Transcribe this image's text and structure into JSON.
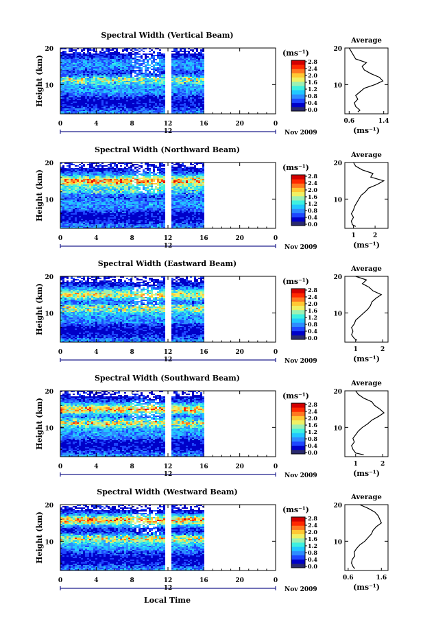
{
  "figure": {
    "xlabel": "Local Time",
    "date_label": "Nov 2009",
    "heatmap_axis_ylabel": "Height (km)",
    "colorbar_unit": "(ms⁻¹)",
    "colorbar_ticks": [
      "0.0",
      "0.4",
      "0.8",
      "1.2",
      "1.6",
      "2.0",
      "2.4",
      "2.8"
    ],
    "colorscale": [
      "#2a2a6e",
      "#0000c8",
      "#1e46ff",
      "#2e8cff",
      "#21c8ff",
      "#3ef0e0",
      "#9cf0b4",
      "#f0f064",
      "#ffc834",
      "#ff7820",
      "#ff2800",
      "#d20000"
    ],
    "time_ticks": [
      "0",
      "4",
      "8",
      "12",
      "16",
      "20",
      "0"
    ],
    "time_marker": "12",
    "height_ticks": [
      "20",
      "10"
    ],
    "profile_title": "Average",
    "profile_unit": "(ms⁻¹)"
  },
  "chart_data": [
    {
      "type": "heatmap",
      "title": "Spectral Width (Vertical Beam)",
      "x_range_hours": [
        0,
        24
      ],
      "y_range_km": [
        2,
        20
      ],
      "data_coverage_hours": [
        0,
        16
      ],
      "gap_hours": [
        11.7,
        12.2
      ],
      "high_layers_km": [
        {
          "center": 11.5,
          "level": 2.2
        }
      ],
      "profile": {
        "xticks": [
          "0.6",
          "1.4"
        ],
        "xlim": [
          0.5,
          1.5
        ],
        "points": [
          [
            2.5,
            0.8
          ],
          [
            3,
            0.85
          ],
          [
            4,
            0.75
          ],
          [
            5,
            0.72
          ],
          [
            6,
            0.8
          ],
          [
            7,
            0.75
          ],
          [
            8,
            0.85
          ],
          [
            9,
            0.95
          ],
          [
            10,
            1.2
          ],
          [
            11,
            1.38
          ],
          [
            12,
            1.3
          ],
          [
            13,
            1.1
          ],
          [
            14,
            0.95
          ],
          [
            15,
            0.9
          ],
          [
            16,
            1.0
          ],
          [
            17,
            0.75
          ],
          [
            18,
            0.7
          ],
          [
            19,
            0.65
          ],
          [
            20,
            0.6
          ]
        ]
      }
    },
    {
      "type": "heatmap",
      "title": "Spectral Width (Northward Beam)",
      "x_range_hours": [
        0,
        24
      ],
      "y_range_km": [
        2,
        20
      ],
      "data_coverage_hours": [
        0,
        16
      ],
      "gap_hours": [
        11.7,
        12.2
      ],
      "high_layers_km": [
        {
          "center": 15,
          "level": 2.4
        },
        {
          "center": 12.5,
          "level": 1.8
        }
      ],
      "profile": {
        "xticks": [
          "1",
          "2"
        ],
        "xlim": [
          0.6,
          2.6
        ],
        "points": [
          [
            2.5,
            1.1
          ],
          [
            3,
            0.95
          ],
          [
            4,
            0.9
          ],
          [
            5,
            1.0
          ],
          [
            6,
            0.9
          ],
          [
            7,
            1.0
          ],
          [
            8,
            1.05
          ],
          [
            9,
            1.15
          ],
          [
            10,
            1.25
          ],
          [
            11,
            1.35
          ],
          [
            12,
            1.55
          ],
          [
            13,
            1.7
          ],
          [
            14,
            2.1
          ],
          [
            15,
            2.4
          ],
          [
            16,
            1.8
          ],
          [
            17,
            1.9
          ],
          [
            18,
            1.4
          ],
          [
            19,
            1.1
          ],
          [
            20,
            1.0
          ]
        ]
      }
    },
    {
      "type": "heatmap",
      "title": "Spectral Width (Eastward Beam)",
      "x_range_hours": [
        0,
        24
      ],
      "y_range_km": [
        2,
        20
      ],
      "data_coverage_hours": [
        0,
        16
      ],
      "gap_hours": [
        11.7,
        12.2
      ],
      "high_layers_km": [
        {
          "center": 11.5,
          "level": 2.4
        },
        {
          "center": 15,
          "level": 1.8
        }
      ],
      "profile": {
        "xticks": [
          "1",
          "2"
        ],
        "xlim": [
          0.6,
          2.2
        ],
        "points": [
          [
            2.5,
            1.05
          ],
          [
            3,
            0.95
          ],
          [
            4,
            0.85
          ],
          [
            5,
            0.9
          ],
          [
            6,
            0.85
          ],
          [
            7,
            0.95
          ],
          [
            8,
            1.0
          ],
          [
            9,
            1.15
          ],
          [
            10,
            1.3
          ],
          [
            11,
            1.45
          ],
          [
            12,
            1.55
          ],
          [
            13,
            1.6
          ],
          [
            14,
            1.75
          ],
          [
            15,
            1.95
          ],
          [
            16,
            1.65
          ],
          [
            17,
            1.5
          ],
          [
            18,
            1.25
          ],
          [
            19,
            1.4
          ],
          [
            20,
            1.0
          ]
        ]
      }
    },
    {
      "type": "heatmap",
      "title": "Spectral Width (Southward Beam)",
      "x_range_hours": [
        0,
        24
      ],
      "y_range_km": [
        2,
        20
      ],
      "data_coverage_hours": [
        0,
        16
      ],
      "gap_hours": [
        11.7,
        12.2
      ],
      "high_layers_km": [
        {
          "center": 11.5,
          "level": 2.6
        },
        {
          "center": 15,
          "level": 2.2
        }
      ],
      "profile": {
        "xticks": [
          "1",
          "2"
        ],
        "xlim": [
          0.6,
          2.2
        ],
        "points": [
          [
            2.5,
            1.3
          ],
          [
            3,
            1.0
          ],
          [
            4,
            0.9
          ],
          [
            5,
            0.85
          ],
          [
            6,
            0.95
          ],
          [
            7,
            0.9
          ],
          [
            8,
            1.0
          ],
          [
            9,
            1.1
          ],
          [
            10,
            1.25
          ],
          [
            11,
            1.45
          ],
          [
            12,
            1.6
          ],
          [
            13,
            1.85
          ],
          [
            14,
            2.05
          ],
          [
            15,
            1.9
          ],
          [
            16,
            1.7
          ],
          [
            17,
            1.6
          ],
          [
            18,
            1.3
          ],
          [
            19,
            1.1
          ],
          [
            20,
            1.0
          ]
        ]
      }
    },
    {
      "type": "heatmap",
      "title": "Spectral Width (Westward Beam)",
      "x_range_hours": [
        0,
        24
      ],
      "y_range_km": [
        2,
        20
      ],
      "data_coverage_hours": [
        0,
        16
      ],
      "gap_hours": [
        11.7,
        12.2
      ],
      "high_layers_km": [
        {
          "center": 11,
          "level": 2.4
        },
        {
          "center": 16,
          "level": 2.2
        }
      ],
      "profile": {
        "xticks": [
          "0.6",
          "1.6"
        ],
        "xlim": [
          0.5,
          1.8
        ],
        "points": [
          [
            2.5,
            0.8
          ],
          [
            3,
            0.75
          ],
          [
            4,
            0.7
          ],
          [
            5,
            0.72
          ],
          [
            6,
            0.8
          ],
          [
            7,
            0.78
          ],
          [
            8,
            0.85
          ],
          [
            9,
            0.95
          ],
          [
            10,
            1.1
          ],
          [
            11,
            1.2
          ],
          [
            12,
            1.3
          ],
          [
            13,
            1.35
          ],
          [
            14,
            1.45
          ],
          [
            15,
            1.6
          ],
          [
            16,
            1.55
          ],
          [
            17,
            1.5
          ],
          [
            18,
            1.4
          ],
          [
            19,
            1.2
          ],
          [
            20,
            0.95
          ]
        ]
      }
    }
  ]
}
